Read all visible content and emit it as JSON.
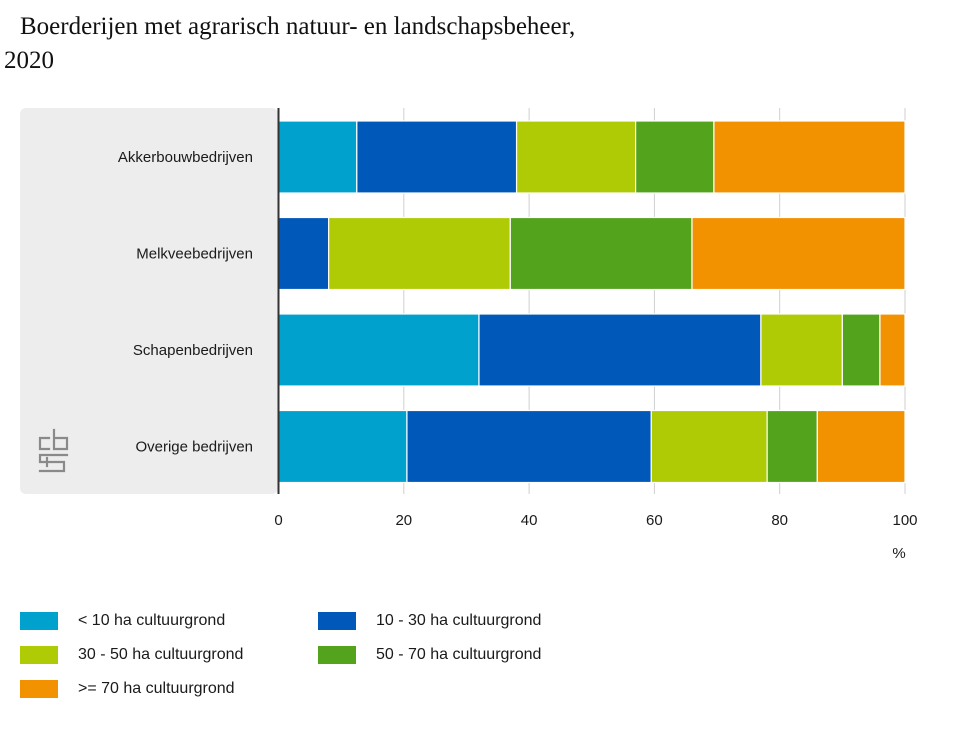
{
  "title": {
    "line1": "Boerderijen met agrarisch natuur- en landschapsbeheer,",
    "line2": "2020"
  },
  "logo": {
    "icon": "cbs-logo-icon"
  },
  "chart_data": {
    "type": "bar",
    "orientation": "horizontal",
    "stacked": true,
    "title": "Boerderijen met agrarisch natuur- en landschapsbeheer, 2020",
    "categories": [
      "Akkerbouwbedrijven",
      "Melkveebedrijven",
      "Schapenbedrijven",
      "Overige bedrijven"
    ],
    "xlabel": "%",
    "ylabel": "",
    "xlim": [
      0,
      100
    ],
    "xticks": [
      0,
      20,
      40,
      60,
      80,
      100
    ],
    "grid": true,
    "legend_position": "bottom",
    "series": [
      {
        "name": "< 10 ha cultuurgrond",
        "color": "#00a1cd",
        "values": [
          12.5,
          0,
          32,
          20.5
        ]
      },
      {
        "name": "10 - 30 ha cultuurgrond",
        "color": "#0058b8",
        "values": [
          25.5,
          8,
          45,
          39
        ]
      },
      {
        "name": "30 - 50 ha cultuurgrond",
        "color": "#afcb05",
        "values": [
          19,
          29,
          13,
          18.5
        ]
      },
      {
        "name": "50 - 70 ha cultuurgrond",
        "color": "#53a31d",
        "values": [
          12.5,
          29,
          6,
          8
        ]
      },
      {
        "name": ">= 70 ha cultuurgrond",
        "color": "#f39200",
        "values": [
          30.5,
          34,
          4,
          14
        ]
      }
    ]
  }
}
